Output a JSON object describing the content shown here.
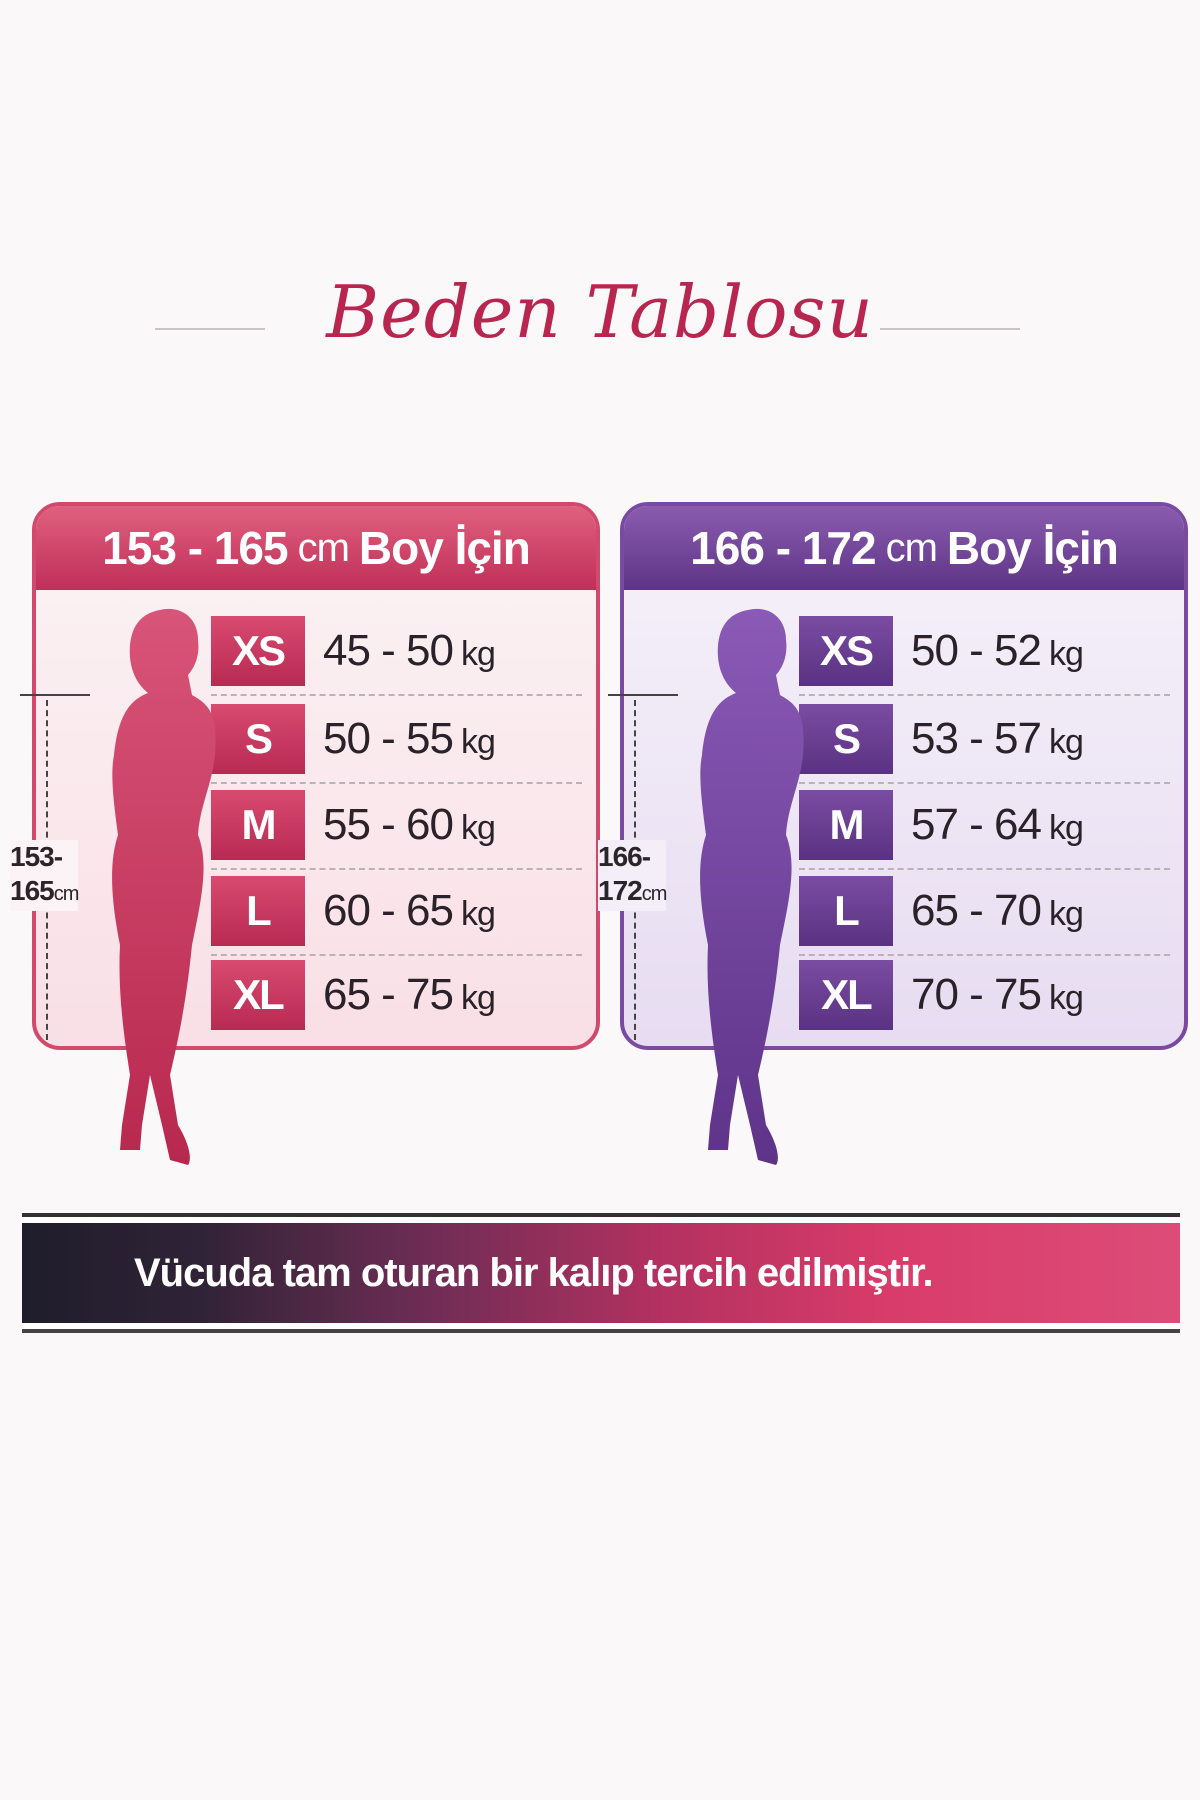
{
  "title": "Beden Tablosu",
  "colors": {
    "pink": "#c8345e",
    "purple": "#6a3d8e",
    "title": "#b8264f"
  },
  "cards": [
    {
      "range": "153 - 165",
      "unit": "cm",
      "suffix": "Boy İçin",
      "height_label_top": "153-",
      "height_label_bottom": "165",
      "height_label_unit": "cm",
      "rows": [
        {
          "size": "XS",
          "weight": "45 - 50",
          "unit": "kg"
        },
        {
          "size": "S",
          "weight": "50 - 55",
          "unit": "kg"
        },
        {
          "size": "M",
          "weight": "55 - 60",
          "unit": "kg"
        },
        {
          "size": "L",
          "weight": "60 - 65",
          "unit": "kg"
        },
        {
          "size": "XL",
          "weight": "65 - 75",
          "unit": "kg"
        }
      ]
    },
    {
      "range": "166 - 172",
      "unit": "cm",
      "suffix": "Boy İçin",
      "height_label_top": "166-",
      "height_label_bottom": "172",
      "height_label_unit": "cm",
      "rows": [
        {
          "size": "XS",
          "weight": "50 - 52",
          "unit": "kg"
        },
        {
          "size": "S",
          "weight": "53 - 57",
          "unit": "kg"
        },
        {
          "size": "M",
          "weight": "57 - 64",
          "unit": "kg"
        },
        {
          "size": "L",
          "weight": "65 - 70",
          "unit": "kg"
        },
        {
          "size": "XL",
          "weight": "70 - 75",
          "unit": "kg"
        }
      ]
    }
  ],
  "banner": "Vücuda tam oturan bir kalıp tercih edilmiştir."
}
